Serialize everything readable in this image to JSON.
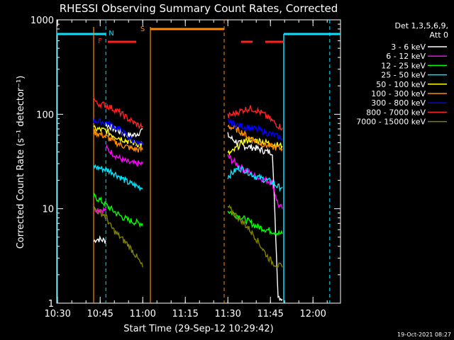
{
  "chart_data": {
    "type": "line",
    "title": "RHESSI Observing Summary Count Rates, Corrected",
    "xlabel": "Start Time (29-Sep-12 10:29:42)",
    "ylabel": "Corrected Count Rate (s⁻¹ detector⁻¹)",
    "ylog": true,
    "ylim": [
      1,
      1000
    ],
    "xlim_minutes": [
      0,
      100
    ],
    "x_ticks": [
      {
        "t": 0.3,
        "label": "10:30"
      },
      {
        "t": 15.3,
        "label": "10:45"
      },
      {
        "t": 30.3,
        "label": "11:00"
      },
      {
        "t": 45.3,
        "label": "11:15"
      },
      {
        "t": 60.3,
        "label": "11:30"
      },
      {
        "t": 75.3,
        "label": "11:45"
      },
      {
        "t": 90.3,
        "label": "12:00"
      }
    ],
    "y_ticks": [
      {
        "v": 1,
        "label": "1"
      },
      {
        "v": 10,
        "label": "10"
      },
      {
        "v": 100,
        "label": "100"
      },
      {
        "v": 1000,
        "label": "1000"
      }
    ],
    "legend_title": [
      "Det 1,3,5,6,9,",
      "Att 0"
    ],
    "legend_position": "right",
    "flags": [
      {
        "label": "F",
        "color": "#ff2020",
        "segments": [
          [
            18.0,
            28.0
          ],
          [
            65.0,
            69.0
          ],
          [
            73.5,
            80.0
          ]
        ]
      },
      {
        "label": "N",
        "color": "#00e5ff",
        "segments": []
      },
      {
        "label": "S",
        "color": "#ff8c00",
        "segments": [
          [
            33.0,
            59.0
          ]
        ]
      }
    ],
    "night_boundaries": [
      {
        "t": 17.3,
        "color": "#00e5ff"
      },
      {
        "t": 96.2,
        "color": "#00e5ff"
      }
    ],
    "saa_boundaries": [
      {
        "t": 59.0,
        "color": "#ff8c00"
      }
    ],
    "night_bars": [
      [
        0,
        17.3
      ],
      [
        80.0,
        100
      ]
    ],
    "gaps": [
      [
        33.0,
        59.0
      ]
    ],
    "series": [
      {
        "name": "3 - 6 keV",
        "color": "#ffffff",
        "segments": [
          {
            "x": [
              13.0,
              14.0,
              15.5,
              17.0,
              17.3
            ],
            "y": [
              4.5,
              4.8,
              4.7,
              4.6,
              4.5
            ]
          },
          {
            "x": [
              17.3,
              19.0,
              21.0,
              23.0,
              25.0,
              27.0,
              29.0,
              30.3
            ],
            "y": [
              78,
              74,
              68,
              64,
              60,
              60,
              64,
              70
            ]
          },
          {
            "x": [
              60.3,
              62.0,
              64.0,
              66.0,
              68.0,
              70.0,
              72.0,
              74.0,
              76.0,
              78.0,
              79.5
            ],
            "y": [
              60,
              54,
              50,
              46,
              45,
              44,
              42,
              40,
              40,
              1.2,
              1.1
            ]
          }
        ]
      },
      {
        "name": "6 - 12 keV",
        "color": "#ff00ff",
        "segments": [
          {
            "x": [
              13.0,
              15.0,
              17.3
            ],
            "y": [
              10.0,
              9.8,
              9.6
            ]
          },
          {
            "x": [
              17.3,
              19.0,
              21.0,
              23.0,
              25.0,
              27.0,
              29.0,
              30.3
            ],
            "y": [
              44,
              40,
              36,
              33,
              31,
              30,
              30,
              30
            ]
          },
          {
            "x": [
              60.3,
              62.0,
              64.0,
              66.0,
              68.0,
              70.0,
              72.0,
              74.0,
              76.0,
              78.0,
              79.5
            ],
            "y": [
              36,
              32,
              29,
              26,
              24,
              22,
              21,
              20,
              19,
              11,
              10
            ]
          }
        ]
      },
      {
        "name": "12 - 25 keV",
        "color": "#00ff00",
        "segments": [
          {
            "x": [
              13.0,
              15.0,
              17.3,
              19.0,
              21.0,
              23.0,
              25.0,
              27.0,
              29.0,
              30.3
            ],
            "y": [
              13.5,
              12.5,
              11.0,
              10.0,
              9.0,
              8.2,
              7.6,
              7.3,
              7.0,
              7.0
            ]
          },
          {
            "x": [
              60.3,
              62.0,
              64.0,
              66.0,
              68.0,
              70.0,
              72.0,
              74.0,
              76.0,
              78.0,
              79.5
            ],
            "y": [
              9.5,
              9.0,
              8.4,
              7.8,
              7.2,
              6.6,
              6.3,
              6.0,
              5.8,
              5.5,
              5.4
            ]
          }
        ]
      },
      {
        "name": "25 - 50 keV",
        "color": "#00e5ff",
        "segments": [
          {
            "x": [
              13.0,
              15.0,
              17.3,
              19.0,
              21.0,
              23.0,
              25.0,
              27.0,
              29.0,
              30.3
            ],
            "y": [
              28,
              27,
              26,
              25,
              23,
              21,
              19,
              18,
              17,
              16.5
            ]
          },
          {
            "x": [
              60.3,
              62.0,
              64.0,
              66.0,
              68.0,
              70.0,
              72.0,
              74.0,
              76.0,
              78.0,
              79.5
            ],
            "y": [
              22,
              24,
              27,
              26,
              24,
              22,
              21,
              20,
              19,
              17,
              17
            ]
          }
        ]
      },
      {
        "name": "50 - 100 keV",
        "color": "#ffff00",
        "segments": [
          {
            "x": [
              13.0,
              15.0,
              17.3,
              19.0,
              21.0,
              23.0,
              25.0,
              27.0,
              29.0,
              30.3
            ],
            "y": [
              70,
              69,
              67,
              62,
              58,
              55,
              52,
              50,
              48,
              48
            ]
          },
          {
            "x": [
              60.3,
              62.0,
              64.0,
              66.0,
              68.0,
              70.0,
              72.0,
              74.0,
              76.0,
              78.0,
              79.5
            ],
            "y": [
              38,
              40,
              46,
              52,
              54,
              53,
              52,
              50,
              48,
              47,
              46
            ]
          }
        ]
      },
      {
        "name": "100 - 300 keV",
        "color": "#ff8c00",
        "segments": [
          {
            "x": [
              13.0,
              15.0,
              17.3,
              19.0,
              21.0,
              23.0,
              25.0,
              27.0,
              29.0,
              30.3
            ],
            "y": [
              65,
              62,
              58,
              54,
              50,
              47,
              45,
              43,
              42,
              42
            ]
          },
          {
            "x": [
              60.3,
              62.0,
              64.0,
              66.0,
              68.0,
              70.0,
              72.0,
              74.0,
              76.0,
              78.0,
              79.5
            ],
            "y": [
              75,
              72,
              68,
              62,
              56,
              52,
              49,
              47,
              45,
              44,
              43
            ]
          }
        ]
      },
      {
        "name": "300 - 800 keV",
        "color": "#0000ff",
        "segments": [
          {
            "x": [
              13.0,
              15.0,
              17.3,
              19.0,
              21.0,
              23.0,
              25.0,
              27.0,
              29.0,
              30.3
            ],
            "y": [
              86,
              84,
              82,
              78,
              72,
              66,
              58,
              52,
              48,
              47
            ]
          },
          {
            "x": [
              60.3,
              62.0,
              64.0,
              66.0,
              68.0,
              70.0,
              72.0,
              74.0,
              76.0,
              78.0,
              79.5
            ],
            "y": [
              85,
              80,
              76,
              74,
              72,
              70,
              67,
              64,
              61,
              58,
              56
            ]
          }
        ]
      },
      {
        "name": "800 - 7000 keV",
        "color": "#ff2020",
        "segments": [
          {
            "x": [
              13.0,
              14.0,
              15.5,
              17.3,
              19.0,
              21.0,
              23.0,
              25.0,
              27.0,
              29.0,
              30.3
            ],
            "y": [
              150,
              130,
              128,
              125,
              118,
              110,
              100,
              90,
              82,
              76,
              75
            ]
          },
          {
            "x": [
              60.3,
              62.0,
              64.0,
              66.0,
              68.0,
              70.0,
              72.0,
              74.0,
              76.0,
              78.0,
              79.5
            ],
            "y": [
              95,
              100,
              106,
              112,
              116,
              112,
              104,
              95,
              85,
              76,
              72
            ]
          }
        ]
      },
      {
        "name": "7000 - 15000 keV",
        "color": "#808000",
        "segments": [
          {
            "x": [
              13.0,
              15.0,
              17.3,
              19.0,
              21.0,
              23.0,
              25.0,
              27.0,
              29.0,
              30.3
            ],
            "y": [
              10.0,
              9.2,
              8.4,
              6.5,
              5.5,
              4.8,
              4.2,
              3.5,
              2.8,
              2.4
            ]
          },
          {
            "x": [
              60.3,
              62.0,
              64.0,
              66.0,
              68.0,
              70.0,
              72.0,
              74.0,
              76.0,
              78.0,
              79.5
            ],
            "y": [
              10.5,
              9.2,
              8.0,
              7.0,
              6.0,
              5.0,
              4.0,
              3.2,
              2.7,
              2.5,
              2.4
            ]
          }
        ]
      }
    ]
  },
  "footer_date": "19-Oct-2021 08:27"
}
